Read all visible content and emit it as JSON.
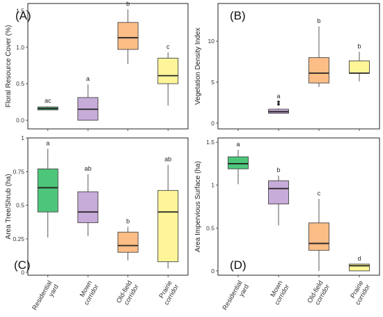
{
  "categories": [
    "Residential yard",
    "Mown corridor",
    "Old-field corridor",
    "Prairie corridor"
  ],
  "category_label_lines": [
    [
      "Residential",
      "yard"
    ],
    [
      "Mown",
      "corridor"
    ],
    [
      "Old-field",
      "corridor"
    ],
    [
      "Prairie",
      "corridor"
    ]
  ],
  "colors": [
    "#4dc67a",
    "#c7abd8",
    "#fdbd86",
    "#fdf598"
  ],
  "median_color": "#222222",
  "chart_data": [
    {
      "type": "box",
      "label": "(A)",
      "ylabel": "Floral Resource Cover (%)",
      "ylim": [
        -0.12,
        1.6
      ],
      "yticks": [
        0.0,
        0.5,
        1.0,
        1.5
      ],
      "ytick_labels": [
        "0.0",
        "0.5",
        "1.0",
        "1.5"
      ],
      "boxes": [
        {
          "min": 0.14,
          "q1": 0.14,
          "median": 0.16,
          "q3": 0.18,
          "max": 0.19,
          "letter": "ac"
        },
        {
          "min": 0.0,
          "q1": 0.0,
          "median": 0.15,
          "q3": 0.31,
          "max": 0.49,
          "letter": "a"
        },
        {
          "min": 0.77,
          "q1": 0.97,
          "median": 1.13,
          "q3": 1.34,
          "max": 1.52,
          "letter": "b"
        },
        {
          "min": 0.2,
          "q1": 0.5,
          "median": 0.61,
          "q3": 0.85,
          "max": 0.93,
          "letter": "c"
        }
      ]
    },
    {
      "type": "box",
      "label": "(B)",
      "ylabel": "Vegetation Density Index",
      "ylim": [
        -0.7,
        14.6
      ],
      "yticks": [
        0,
        5,
        10
      ],
      "ytick_labels": [
        "0",
        "5",
        "10"
      ],
      "boxes": [],
      "boxes_by_category": [
        null,
        {
          "min": 1.2,
          "q1": 1.2,
          "median": 1.4,
          "q3": 1.7,
          "max": 1.8,
          "outliers": [
            2.3,
            2.6
          ],
          "letter": "a"
        },
        {
          "min": 4.4,
          "q1": 4.9,
          "median": 6.1,
          "q3": 8.0,
          "max": 11.8,
          "letter": "b"
        },
        {
          "min": 5.1,
          "q1": 6.1,
          "median": 6.1,
          "q3": 7.6,
          "max": 8.7,
          "letter": "b"
        }
      ]
    },
    {
      "type": "box",
      "label": "(C)",
      "ylabel": "Area Tree/Shrub (ha)",
      "ylim": [
        -0.02,
        1.0
      ],
      "yticks": [
        0.0,
        0.25,
        0.5,
        0.75,
        1.0
      ],
      "ytick_labels": [
        "0",
        "0.25",
        "0.5",
        "0.75",
        "1"
      ],
      "boxes": [
        {
          "min": 0.26,
          "q1": 0.45,
          "median": 0.63,
          "q3": 0.77,
          "max": 0.92,
          "letter": "a"
        },
        {
          "min": 0.27,
          "q1": 0.37,
          "median": 0.45,
          "q3": 0.6,
          "max": 0.73,
          "letter": "ab"
        },
        {
          "min": 0.09,
          "q1": 0.15,
          "median": 0.2,
          "q3": 0.3,
          "max": 0.34,
          "letter": "b"
        },
        {
          "min": 0.03,
          "q1": 0.08,
          "median": 0.45,
          "q3": 0.61,
          "max": 0.8,
          "letter": "ab"
        }
      ]
    },
    {
      "type": "box",
      "label": "(D)",
      "ylabel": "Area Impervious Surface (ha)",
      "ylim": [
        -0.05,
        1.55
      ],
      "yticks": [
        0.0,
        0.5,
        1.0,
        1.5
      ],
      "ytick_labels": [
        "0",
        "0.5",
        "1",
        "1.5"
      ],
      "boxes": [
        {
          "min": 1.01,
          "q1": 1.19,
          "median": 1.25,
          "q3": 1.33,
          "max": 1.41,
          "letter": "a"
        },
        {
          "min": 0.53,
          "q1": 0.78,
          "median": 0.96,
          "q3": 1.05,
          "max": 1.11,
          "letter": "b"
        },
        {
          "min": 0.0,
          "q1": 0.24,
          "median": 0.32,
          "q3": 0.56,
          "max": 0.84,
          "letter": "c"
        },
        {
          "min": 0.0,
          "q1": 0.0,
          "median": 0.06,
          "q3": 0.08,
          "max": 0.08,
          "letter": "d"
        }
      ]
    }
  ]
}
